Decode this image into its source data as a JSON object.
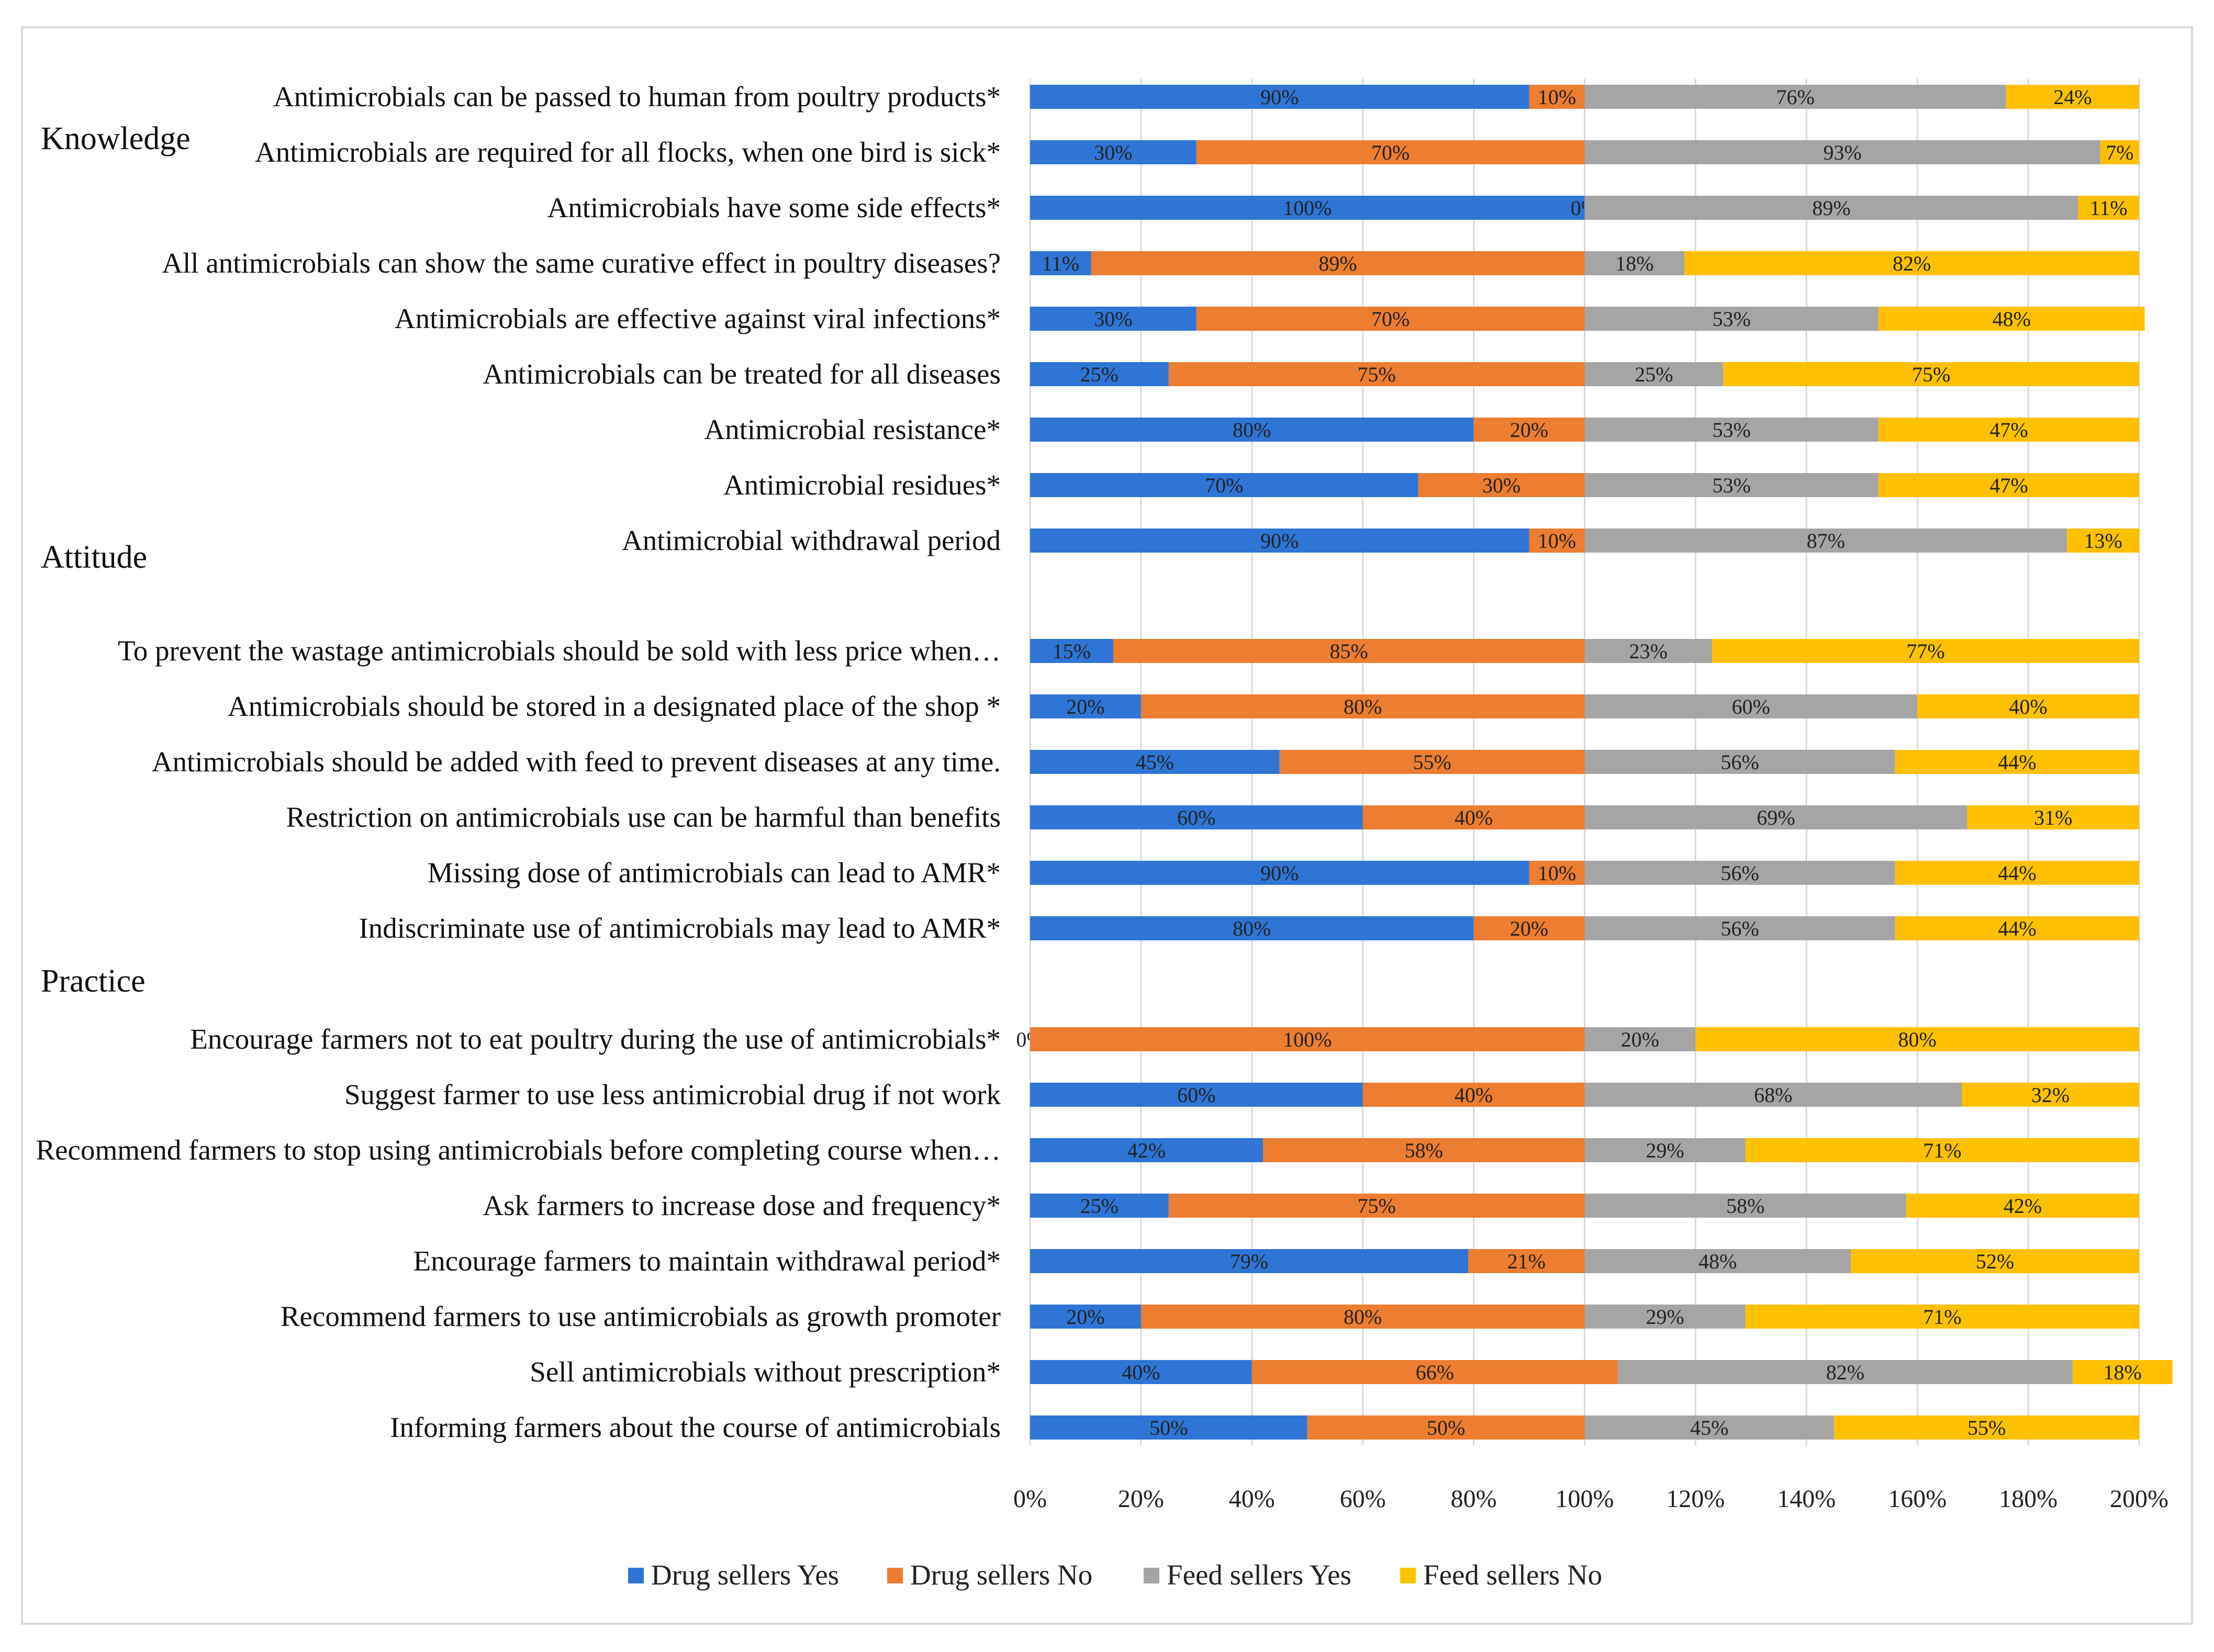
{
  "chart_data": {
    "type": "bar",
    "orientation": "horizontal",
    "stacked": true,
    "title": "",
    "xlabel": "",
    "ylabel": "",
    "xlim": [
      0,
      200
    ],
    "xticks": [
      "0%",
      "20%",
      "40%",
      "60%",
      "80%",
      "100%",
      "120%",
      "140%",
      "160%",
      "180%",
      "200%"
    ],
    "grid": true,
    "legend_position": "bottom",
    "colors": {
      "drug_yes": "#2e75d6",
      "drug_no": "#ed7d31",
      "feed_yes": "#a5a5a5",
      "feed_no": "#ffc000",
      "grid": "#d9d9d9"
    },
    "series_names": [
      "Drug sellers Yes",
      "Drug sellers No",
      "Feed sellers Yes",
      "Feed sellers No"
    ],
    "sections": [
      {
        "name": "Knowledge",
        "rows": [
          {
            "label": "Antimicrobials can be passed to human from poultry products*",
            "values": [
              90,
              10,
              76,
              24
            ]
          },
          {
            "label": "Antimicrobials are required for all flocks, when one bird is sick*",
            "values": [
              30,
              70,
              93,
              7
            ]
          },
          {
            "label": "Antimicrobials have some side effects*",
            "values": [
              100,
              0,
              89,
              11
            ]
          },
          {
            "label": "All antimicrobials can show the same curative effect in poultry diseases?",
            "values": [
              11,
              89,
              18,
              82
            ]
          },
          {
            "label": "Antimicrobials are effective against viral infections*",
            "values": [
              30,
              70,
              53,
              48
            ]
          },
          {
            "label": "Antimicrobials can be treated for all diseases",
            "values": [
              25,
              75,
              25,
              75
            ]
          },
          {
            "label": "Antimicrobial resistance*",
            "values": [
              80,
              20,
              53,
              47
            ]
          },
          {
            "label": "Antimicrobial residues*",
            "values": [
              70,
              30,
              53,
              47
            ]
          },
          {
            "label": "Antimicrobial withdrawal period",
            "values": [
              90,
              10,
              87,
              13
            ]
          }
        ]
      },
      {
        "name": "Attitude",
        "rows": [
          {
            "label": "To prevent the wastage antimicrobials should be sold with less price when…",
            "values": [
              15,
              85,
              23,
              77
            ]
          },
          {
            "label": "Antimicrobials should be stored in a designated place of the shop *",
            "values": [
              20,
              80,
              60,
              40
            ]
          },
          {
            "label": "Antimicrobials should be added with feed to prevent diseases at any time.",
            "values": [
              45,
              55,
              56,
              44
            ]
          },
          {
            "label": "Restriction on antimicrobials use can be harmful than benefits",
            "values": [
              60,
              40,
              69,
              31
            ]
          },
          {
            "label": "Missing dose of antimicrobials can lead to AMR*",
            "values": [
              90,
              10,
              56,
              44
            ]
          },
          {
            "label": "Indiscriminate use of antimicrobials may lead to AMR*",
            "values": [
              80,
              20,
              56,
              44
            ]
          }
        ]
      },
      {
        "name": "Practice",
        "rows": [
          {
            "label": "Encourage farmers not to eat poultry during the use of antimicrobials*",
            "values": [
              0,
              100,
              20,
              80
            ]
          },
          {
            "label": "Suggest farmer to use less antimicrobial drug if not work",
            "values": [
              60,
              40,
              68,
              32
            ]
          },
          {
            "label": "Recommend farmers to stop using antimicrobials before completing course when…",
            "values": [
              42,
              58,
              29,
              71
            ]
          },
          {
            "label": "Ask farmers to increase dose and frequency*",
            "values": [
              25,
              75,
              58,
              42
            ]
          },
          {
            "label": "Encourage farmers to maintain withdrawal period*",
            "values": [
              79,
              21,
              48,
              52
            ]
          },
          {
            "label": "Recommend farmers to use antimicrobials as growth promoter",
            "values": [
              20,
              80,
              29,
              71
            ]
          },
          {
            "label": "Sell antimicrobials without prescription*",
            "values": [
              40,
              66,
              82,
              18
            ]
          },
          {
            "label": "Informing farmers about the course of antimicrobials",
            "values": [
              50,
              50,
              45,
              55
            ]
          }
        ]
      }
    ]
  }
}
